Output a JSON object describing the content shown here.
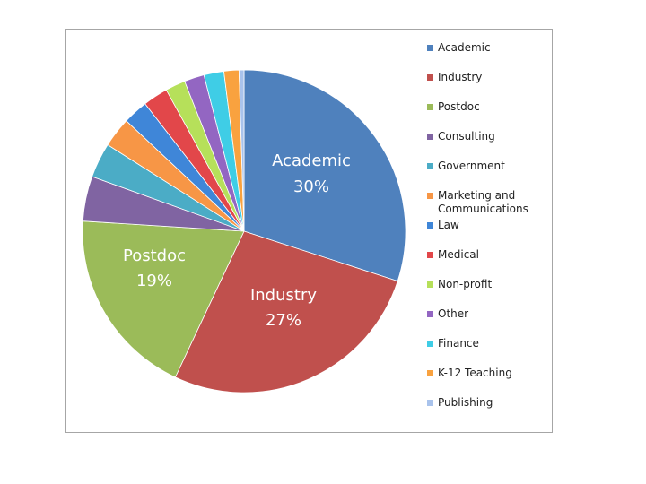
{
  "chart_data": {
    "type": "pie",
    "categories": [
      "Academic",
      "Industry",
      "Postdoc",
      "Consulting",
      "Government",
      "Marketing and Communications",
      "Law",
      "Medical",
      "Non-profit",
      "Other",
      "Finance",
      "K-12 Teaching",
      "Publishing"
    ],
    "values": [
      30,
      27,
      19,
      4.5,
      3.5,
      3,
      2.5,
      2.5,
      2,
      2,
      2,
      1.5,
      0.5
    ],
    "value_labels": [
      "30%",
      "27%",
      "19%",
      null,
      null,
      null,
      null,
      null,
      null,
      null,
      null,
      null,
      null
    ],
    "colors": [
      "#4f81bd",
      "#c0504d",
      "#9bbb59",
      "#8064a2",
      "#4bacc6",
      "#f79646",
      "#3f86d8",
      "#e2474a",
      "#b6e05a",
      "#9366c2",
      "#3fcde6",
      "#f9a23f",
      "#a9c3ec"
    ],
    "legend": "right"
  }
}
